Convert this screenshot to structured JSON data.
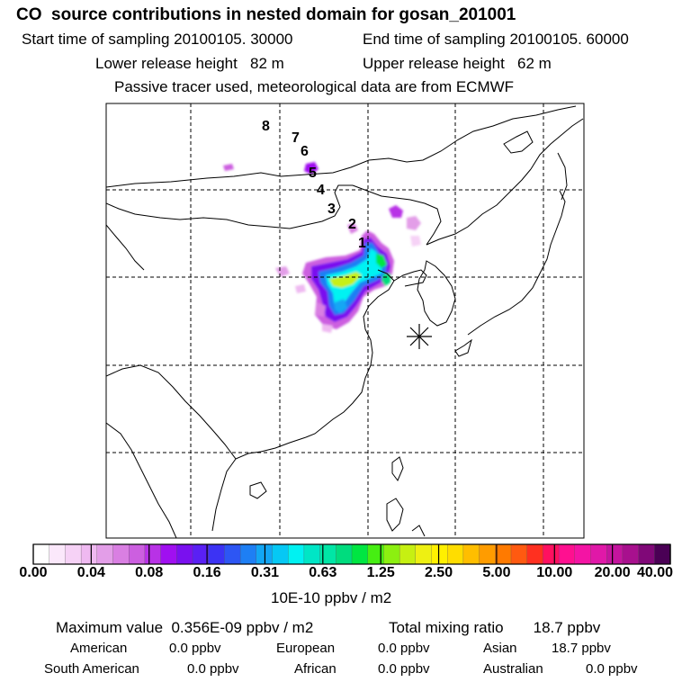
{
  "header": {
    "title": "CO  source contributions in nested domain for gosan_201001",
    "start_label": "Start time of sampling 20100105. 30000",
    "end_label": "End time of sampling 20100105. 60000",
    "lower_label": "Lower release height   82 m",
    "upper_label": "Upper release height   62 m",
    "note": "Passive tracer used, meteorological data are from ECMWF"
  },
  "map": {
    "receptor_marker": "asterisk-icon",
    "trajectory_labels": [
      "1",
      "2",
      "3",
      "4",
      "5",
      "6",
      "7",
      "8"
    ]
  },
  "colorbar": {
    "tick_labels": [
      "0.00",
      "0.04",
      "0.08",
      "0.16",
      "0.31",
      "0.63",
      "1.25",
      "2.50",
      "5.00",
      "10.00",
      "20.00",
      "40.00"
    ],
    "unit": "10E-10 ppbv / m2",
    "colors": [
      "#ffffff",
      "#fbe8fb",
      "#f6d2f6",
      "#efb9f1",
      "#e39ee8",
      "#d97fe2",
      "#cc5fe0",
      "#b832e6",
      "#a00ff0",
      "#7a10ef",
      "#5a20f4",
      "#3c33f4",
      "#2d56f4",
      "#1e7ff4",
      "#12a6f4",
      "#06c8f4",
      "#00f2f2",
      "#00e6c6",
      "#00e6a6",
      "#00dc7e",
      "#00e642",
      "#46ee12",
      "#8cf010",
      "#c6f012",
      "#eef012",
      "#fff000",
      "#ffdd00",
      "#ffbe00",
      "#ff9c00",
      "#ff7a00",
      "#ff5a10",
      "#ff3020",
      "#ff1060",
      "#ff1090",
      "#f414a4",
      "#e018a8",
      "#c4149e",
      "#a8108e",
      "#800878",
      "#4a0055"
    ]
  },
  "footer": {
    "max_label": "Maximum value  0.356E-09 ppbv / m2",
    "total_label": "Total mixing ratio       18.7 ppbv",
    "regions": [
      {
        "name": "American",
        "value": "0.0 ppbv"
      },
      {
        "name": "European",
        "value": "0.0 ppbv"
      },
      {
        "name": "Asian",
        "value": "18.7 ppbv"
      },
      {
        "name": "South American",
        "value": "0.0 ppbv"
      },
      {
        "name": "African",
        "value": "0.0 ppbv"
      },
      {
        "name": "Australian",
        "value": "0.0 ppbv"
      }
    ]
  }
}
